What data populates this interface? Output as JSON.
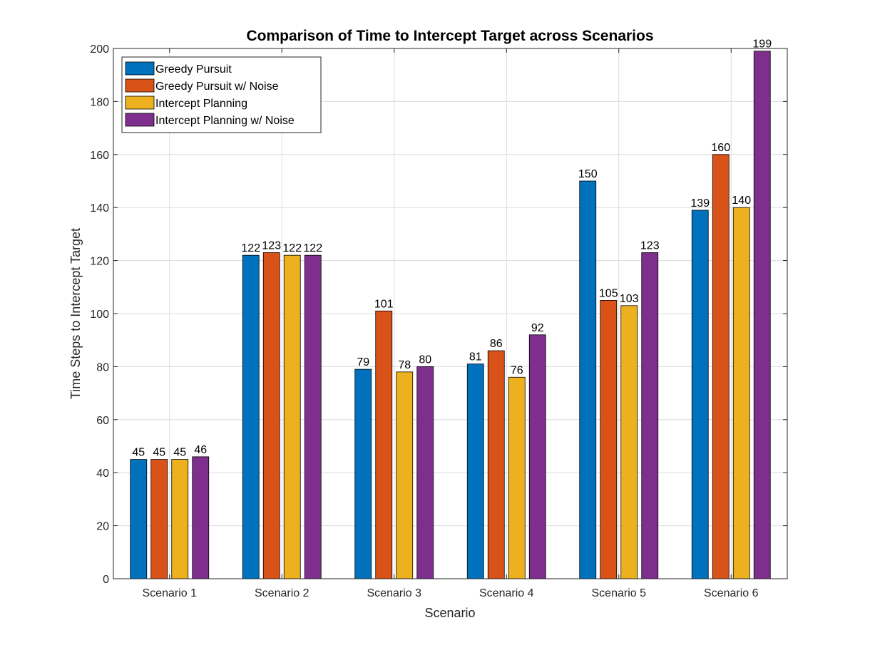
{
  "chart_data": {
    "type": "bar",
    "title": "Comparison of Time to Intercept Target across Scenarios",
    "xlabel": "Scenario",
    "ylabel": "Time Steps to Intercept Target",
    "categories": [
      "Scenario 1",
      "Scenario 2",
      "Scenario 3",
      "Scenario 4",
      "Scenario 5",
      "Scenario 6"
    ],
    "ylim": [
      0,
      200
    ],
    "yticks": [
      0,
      20,
      40,
      60,
      80,
      100,
      120,
      140,
      160,
      180,
      200
    ],
    "grid": true,
    "legend_position": "top-left",
    "series": [
      {
        "name": "Greedy Pursuit",
        "color": "#0072BD",
        "values": [
          45,
          122,
          79,
          81,
          150,
          139
        ]
      },
      {
        "name": "Greedy Pursuit w/ Noise",
        "color": "#D95319",
        "values": [
          45,
          123,
          101,
          86,
          105,
          160
        ]
      },
      {
        "name": "Intercept Planning",
        "color": "#EDB120",
        "values": [
          45,
          122,
          78,
          76,
          103,
          140
        ]
      },
      {
        "name": "Intercept Planning w/ Noise",
        "color": "#7E2F8E",
        "values": [
          46,
          122,
          80,
          92,
          123,
          199
        ]
      }
    ]
  }
}
